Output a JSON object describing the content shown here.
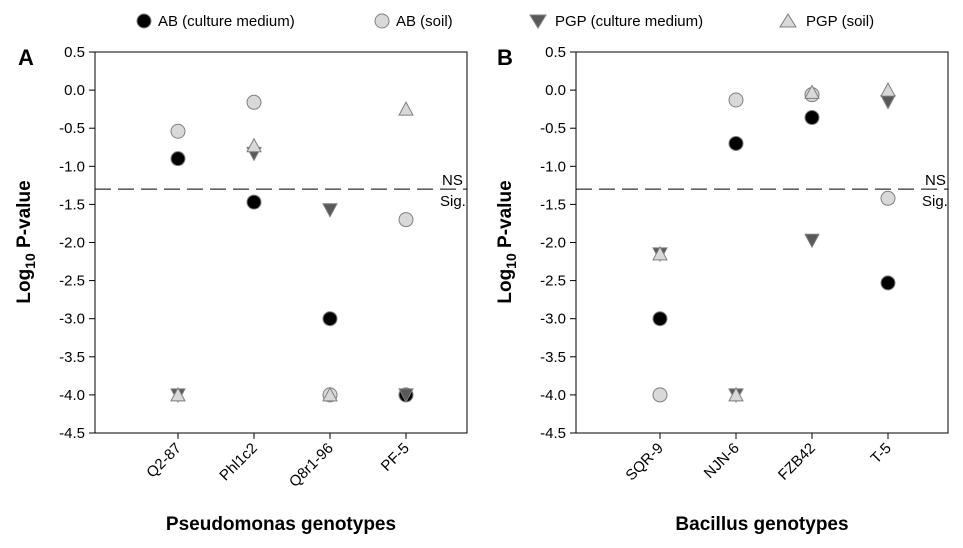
{
  "legend": {
    "ab_culture": "AB (culture medium)",
    "ab_soil": "AB (soil)",
    "pgp_culture": "PGP (culture medium)",
    "pgp_soil": "PGP (soil)"
  },
  "colors": {
    "ab_culture": "#000000",
    "ab_soil": "#d9d9d9",
    "pgp_culture": "#595959",
    "pgp_soil": "#d9d9d9",
    "marker_stroke": "#7f7f7f"
  },
  "reference": {
    "value": -1.3,
    "above_label": "NS",
    "below_label": "Sig."
  },
  "chart_data": [
    {
      "type": "scatter",
      "panel": "A",
      "xlabel": "Pseudomonas genotypes",
      "ylabel_main": "Log",
      "ylabel_sub": "10",
      "ylabel_rest": " P-value",
      "ylim": [
        -4.5,
        0.5
      ],
      "yticks": [
        "0.5",
        "0.0",
        "-0.5",
        "-1.0",
        "-1.5",
        "-2.0",
        "-2.5",
        "-3.0",
        "-3.5",
        "-4.0",
        "-4.5"
      ],
      "grid": false,
      "legend_position": "top",
      "categories": [
        "Q2-87",
        "Phl1c2",
        "Q8r1-96",
        "PF-5"
      ],
      "series": [
        {
          "name": "AB (culture medium)",
          "marker": "circle",
          "values": [
            -0.9,
            -1.47,
            -3.0,
            -4.0
          ]
        },
        {
          "name": "AB (soil)",
          "marker": "circle",
          "values": [
            -0.54,
            -0.16,
            -4.0,
            -1.7
          ]
        },
        {
          "name": "PGP (culture medium)",
          "marker": "triangle-down",
          "values": [
            -4.0,
            -0.83,
            -1.57,
            -4.0
          ]
        },
        {
          "name": "PGP (soil)",
          "marker": "triangle-up",
          "values": [
            -4.0,
            -0.73,
            -4.0,
            -0.25
          ]
        }
      ]
    },
    {
      "type": "scatter",
      "panel": "B",
      "xlabel": "Bacillus genotypes",
      "ylabel_main": "Log",
      "ylabel_sub": "10",
      "ylabel_rest": " P-value",
      "ylim": [
        -4.5,
        0.5
      ],
      "yticks": [
        "0.5",
        "0.0",
        "-0.5",
        "-1.0",
        "-1.5",
        "-2.0",
        "-2.5",
        "-3.0",
        "-3.5",
        "-4.0",
        "-4.5"
      ],
      "grid": false,
      "legend_position": "top",
      "categories": [
        "SQR-9",
        "NJN-6",
        "FZB42",
        "T-5"
      ],
      "series": [
        {
          "name": "AB (culture medium)",
          "marker": "circle",
          "values": [
            -3.0,
            -0.7,
            -0.36,
            -2.53
          ]
        },
        {
          "name": "AB (soil)",
          "marker": "circle",
          "values": [
            -4.0,
            -0.13,
            -0.06,
            -1.42
          ]
        },
        {
          "name": "PGP (culture medium)",
          "marker": "triangle-down",
          "values": [
            -2.15,
            -4.0,
            -1.97,
            -0.15
          ]
        },
        {
          "name": "PGP (soil)",
          "marker": "triangle-up",
          "values": [
            -2.15,
            -4.0,
            -0.03,
            0.0
          ]
        }
      ]
    }
  ]
}
